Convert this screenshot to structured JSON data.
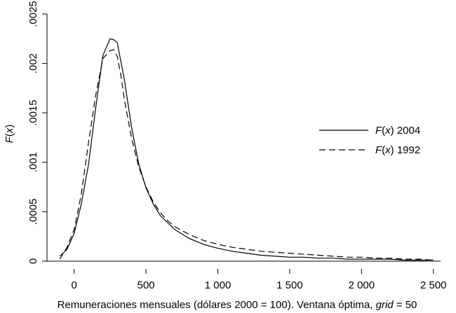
{
  "chart_data": {
    "type": "line",
    "xlabel": {
      "main": "Remuneraciones mensuales (dólares 2000 = 100). Ventana óptima, ",
      "italic": "grid",
      "tail": " = 50"
    },
    "ylabel": {
      "italic": "F",
      "open": "(",
      "italic2": "x",
      "close": ")"
    },
    "xlim": [
      -150,
      2550
    ],
    "ylim": [
      -5e-05,
      0.0025
    ],
    "xticks": [
      0,
      500,
      1000,
      1500,
      2000,
      2500
    ],
    "xtick_labels": [
      "0",
      "500",
      "1 000",
      "1 500",
      "2 000",
      "2 500"
    ],
    "yticks": [
      0,
      0.0005,
      0.001,
      0.0015,
      0.002,
      0.0025
    ],
    "ytick_labels": [
      "0",
      ".0005",
      ".001",
      ".0015",
      ".002",
      ".0025"
    ],
    "grid": false,
    "legend_position": "right",
    "series": [
      {
        "name": "F(x) 2004",
        "legend": {
          "italic": "F",
          "open": "(",
          "italic2": "x",
          "close": ")",
          "tail": " 2004"
        },
        "style": "solid",
        "color": "#000000",
        "x": [
          -100,
          -50,
          0,
          50,
          100,
          150,
          200,
          250,
          275,
          300,
          325,
          350,
          400,
          450,
          500,
          550,
          600,
          650,
          700,
          800,
          900,
          1000,
          1100,
          1200,
          1300,
          1400,
          1500,
          1600,
          1700,
          1800,
          1900,
          2000,
          2100,
          2200,
          2300,
          2400,
          2500
        ],
        "y": [
          5e-05,
          0.00012,
          0.00028,
          0.00058,
          0.00098,
          0.00155,
          0.00208,
          0.00225,
          0.00224,
          0.00221,
          0.00202,
          0.00183,
          0.00135,
          0.00098,
          0.00074,
          0.00058,
          0.00046,
          0.00039,
          0.00032,
          0.00023,
          0.00017,
          0.00013,
          0.0001,
          8e-05,
          6e-05,
          5e-05,
          4e-05,
          4e-05,
          3e-05,
          3e-05,
          2e-05,
          2e-05,
          2e-05,
          2e-05,
          1e-05,
          1e-05,
          1e-05
        ]
      },
      {
        "name": "F(x) 1992",
        "legend": {
          "italic": "F",
          "open": "(",
          "italic2": "x",
          "close": ")",
          "tail": " 1992"
        },
        "style": "dashed",
        "color": "#000000",
        "x": [
          -100,
          -50,
          0,
          50,
          100,
          150,
          200,
          250,
          275,
          300,
          325,
          350,
          400,
          450,
          500,
          550,
          600,
          650,
          700,
          800,
          900,
          1000,
          1100,
          1200,
          1300,
          1400,
          1500,
          1600,
          1700,
          1800,
          1900,
          2000,
          2100,
          2200,
          2300,
          2400,
          2500
        ],
        "y": [
          2e-05,
          0.00014,
          0.00032,
          0.00068,
          0.0012,
          0.00168,
          0.00205,
          0.00213,
          0.00214,
          0.00207,
          0.00188,
          0.00163,
          0.00124,
          0.00095,
          0.00075,
          0.0006,
          0.00049,
          0.00041,
          0.00035,
          0.00027,
          0.00021,
          0.00017,
          0.00014,
          0.00012,
          0.0001,
          9e-05,
          8e-05,
          7e-05,
          6e-05,
          5e-05,
          4e-05,
          4e-05,
          3e-05,
          3e-05,
          2e-05,
          2e-05,
          1e-05
        ]
      }
    ]
  }
}
